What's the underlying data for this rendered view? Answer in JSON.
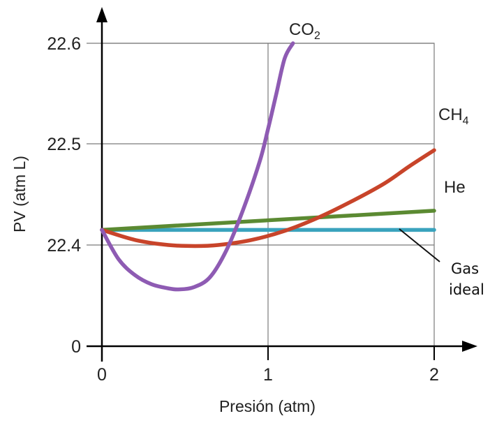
{
  "chart_data": {
    "type": "line",
    "title": "",
    "xlabel": "Presión (atm)",
    "ylabel": "PV (atm L)",
    "x_ticks": [
      "0",
      "1",
      "2"
    ],
    "y_ticks": [
      "0",
      "22.4",
      "22.5",
      "22.6"
    ],
    "xlim": [
      0,
      2
    ],
    "grid": true,
    "series": [
      {
        "name": "CO",
        "name_subscript": "2",
        "color": "#8e5bb3",
        "x": [
          0,
          0.1,
          0.2,
          0.3,
          0.4,
          0.46,
          0.55,
          0.65,
          0.75,
          0.85,
          0.95,
          1.0,
          1.05,
          1.1,
          1.15
        ],
        "y": [
          22.415,
          22.386,
          22.37,
          22.361,
          22.357,
          22.356,
          22.358,
          22.368,
          22.395,
          22.435,
          22.483,
          22.515,
          22.55,
          22.585,
          22.6
        ]
      },
      {
        "name": "CH",
        "name_subscript": "4",
        "color": "#c8442a",
        "x": [
          0,
          0.2,
          0.4,
          0.56,
          0.7,
          0.9,
          1.1,
          1.3,
          1.5,
          1.7,
          1.85,
          2.0
        ],
        "y": [
          22.415,
          22.405,
          22.4,
          22.399,
          22.4,
          22.405,
          22.414,
          22.427,
          22.443,
          22.461,
          22.478,
          22.494
        ]
      },
      {
        "name": "He",
        "color": "#5b8a32",
        "x": [
          0,
          2
        ],
        "y": [
          22.415,
          22.434
        ]
      },
      {
        "name": "Gas ideal",
        "color": "#3aa3bd",
        "x": [
          0,
          2
        ],
        "y": [
          22.415,
          22.415
        ]
      }
    ]
  }
}
